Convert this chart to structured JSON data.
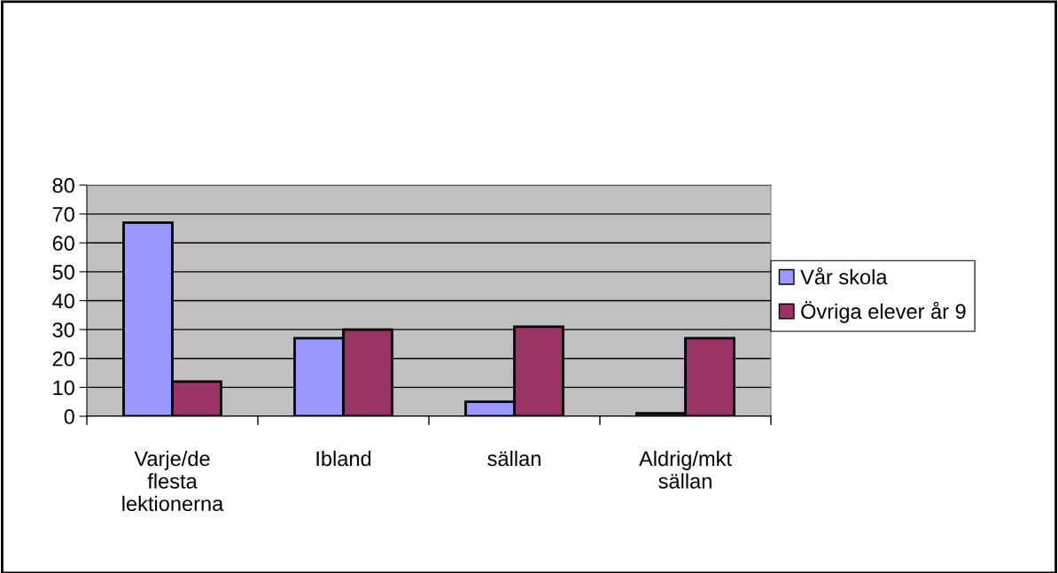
{
  "chart_data": {
    "type": "bar",
    "categories": [
      "Varje/de\nflesta\nlektionerna",
      "Ibland",
      "sällan",
      "Aldrig/mkt\nsällan"
    ],
    "series": [
      {
        "name": "Vår skola",
        "color": "#9999ff",
        "values": [
          67,
          27,
          5,
          1
        ]
      },
      {
        "name": "Övriga elever år 9",
        "color": "#993366",
        "values": [
          12,
          30,
          31,
          27
        ]
      }
    ],
    "ylim": [
      0,
      80
    ],
    "yticks": [
      0,
      10,
      20,
      30,
      40,
      50,
      60,
      70,
      80
    ],
    "grid": "y",
    "legend": "right"
  }
}
